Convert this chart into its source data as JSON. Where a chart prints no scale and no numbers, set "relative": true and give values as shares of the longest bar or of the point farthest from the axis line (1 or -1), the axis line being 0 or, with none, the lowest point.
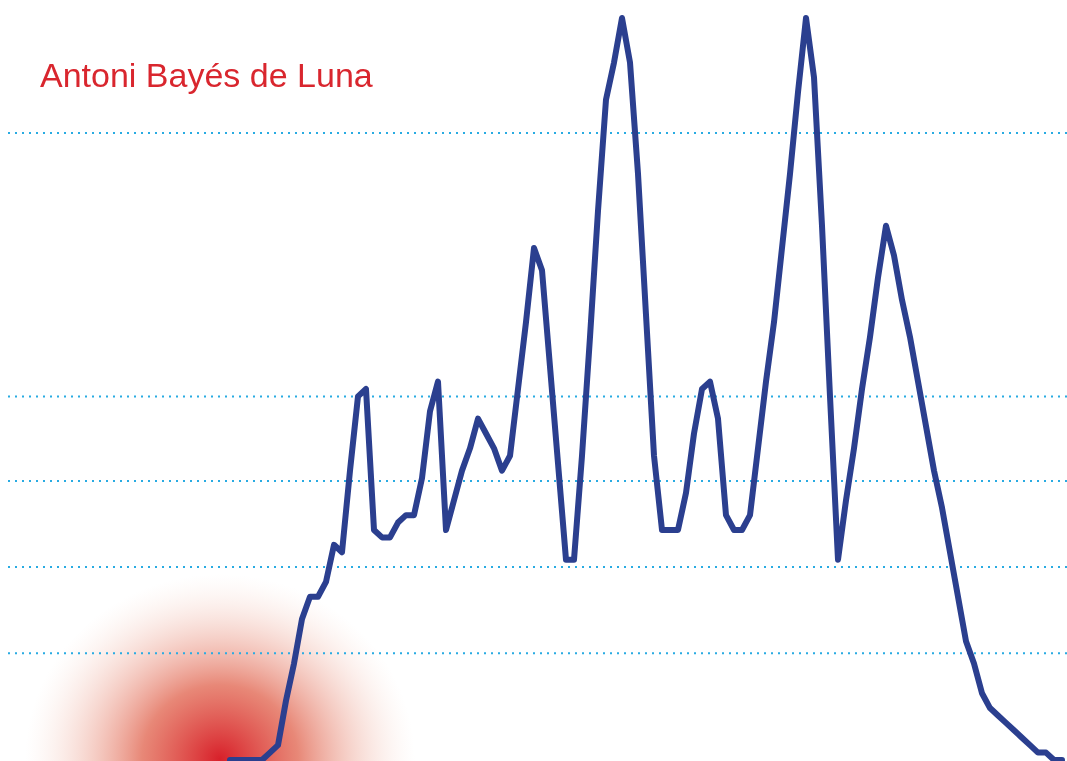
{
  "chart_data": {
    "type": "line",
    "title": "Antoni Bayés de Luna",
    "relative": true,
    "marker": "none",
    "line_style": "solid",
    "tick_labels": false,
    "categories": [
      null,
      null,
      null,
      null,
      null,
      null,
      null,
      null,
      null,
      null,
      null,
      null,
      null,
      null,
      null,
      null,
      null,
      null,
      null,
      null,
      null,
      null,
      null,
      null,
      null,
      null,
      null,
      null,
      null,
      null,
      null,
      null,
      null,
      null,
      null,
      null,
      null,
      null,
      null,
      null,
      null,
      null,
      null,
      null,
      null,
      null,
      null,
      null,
      null,
      null,
      null,
      null,
      null,
      null,
      null,
      null,
      null,
      null,
      null,
      null,
      null,
      null,
      null,
      null,
      null,
      null,
      null,
      null,
      null,
      null,
      null,
      null,
      null,
      null,
      null,
      null,
      null,
      null,
      null,
      null,
      null,
      null,
      null,
      null,
      null,
      null,
      null,
      null,
      null,
      null,
      null,
      null,
      null,
      null,
      null,
      null,
      null,
      null,
      null,
      null,
      null,
      null,
      null,
      null,
      null
    ],
    "series": [
      {
        "color": "#2b3f8f",
        "values": [
          0,
          0,
          0,
          0,
          0,
          0.01,
          0.02,
          0.08,
          0.13,
          0.19,
          0.22,
          0.22,
          0.24,
          0.29,
          0.28,
          0.39,
          0.49,
          0.5,
          0.31,
          0.3,
          0.3,
          0.32,
          0.33,
          0.33,
          0.38,
          0.47,
          0.51,
          0.31,
          0.35,
          0.39,
          0.42,
          0.46,
          0.44,
          0.42,
          0.39,
          0.41,
          0.5,
          0.59,
          0.69,
          0.66,
          0.53,
          0.4,
          0.27,
          0.27,
          0.41,
          0.57,
          0.74,
          0.89,
          0.94,
          1,
          0.94,
          0.79,
          0.6,
          0.41,
          0.31,
          0.31,
          0.31,
          0.36,
          0.44,
          0.5,
          0.51,
          0.46,
          0.33,
          0.31,
          0.31,
          0.33,
          0.42,
          0.51,
          0.59,
          0.69,
          0.79,
          0.9,
          1,
          0.92,
          0.72,
          0.49,
          0.27,
          0.35,
          0.42,
          0.5,
          0.57,
          0.65,
          0.72,
          0.68,
          0.62,
          0.57,
          0.51,
          0.45,
          0.39,
          0.34,
          0.28,
          0.22,
          0.16,
          0.13,
          0.09,
          0.07,
          0.06,
          0.05,
          0.04,
          0.03,
          0.02,
          0.01,
          0.01,
          0,
          0
        ]
      }
    ],
    "ref_lines": [
      {
        "axis": "y",
        "value": 0.845,
        "color": "#29abe2",
        "line_style": "dotted"
      },
      {
        "axis": "y",
        "value": 0.49,
        "color": "#29abe2",
        "line_style": "dotted"
      },
      {
        "axis": "y",
        "value": 0.376,
        "color": "#29abe2",
        "line_style": "dotted"
      },
      {
        "axis": "y",
        "value": 0.26,
        "color": "#29abe2",
        "line_style": "dotted"
      },
      {
        "axis": "y",
        "value": 0.144,
        "color": "#29abe2",
        "line_style": "dotted"
      }
    ]
  }
}
